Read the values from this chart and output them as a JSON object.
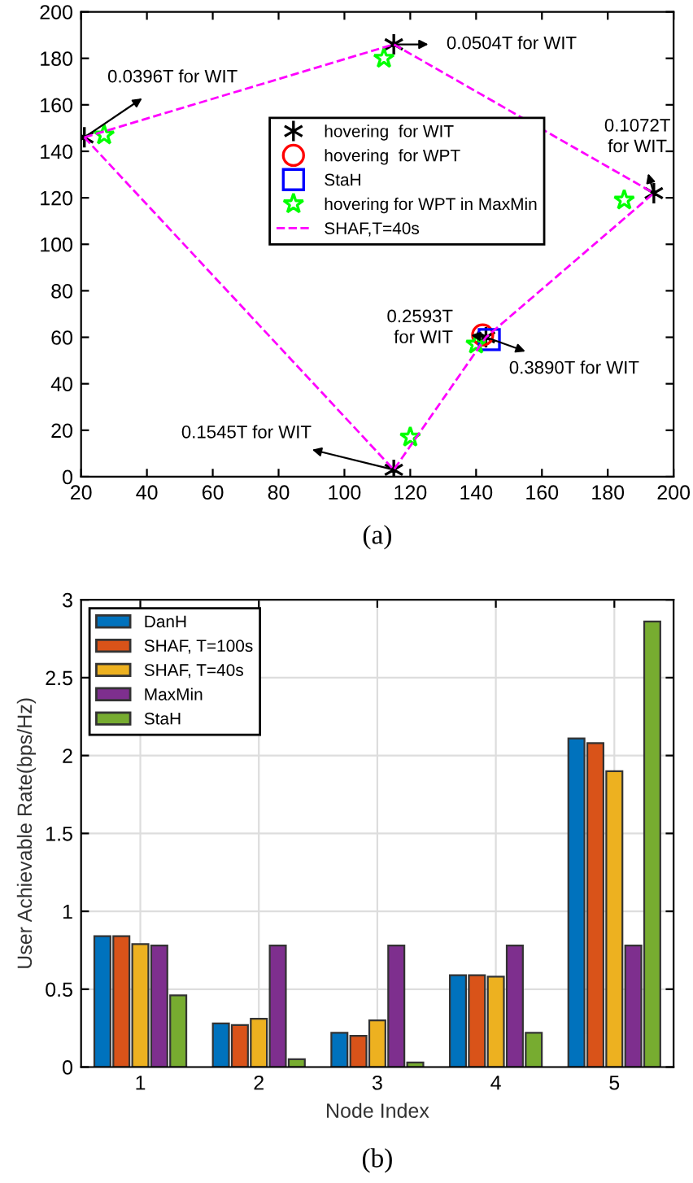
{
  "chart_data": [
    {
      "type": "scatter",
      "xlim": [
        20,
        200
      ],
      "ylim": [
        0,
        200
      ],
      "xticks": [
        20,
        40,
        60,
        80,
        100,
        120,
        140,
        160,
        180,
        200
      ],
      "yticks": [
        0,
        20,
        40,
        60,
        80,
        100,
        120,
        140,
        160,
        180,
        200
      ],
      "grid": false,
      "legend": "top",
      "series": [
        {
          "name": "hovering  for WIT",
          "color": "#000000",
          "marker": "cross",
          "x": [
            21,
            115,
            194,
            143,
            115
          ],
          "values": [
            146,
            186,
            122,
            60,
            3
          ]
        },
        {
          "name": "hovering  for WPT",
          "color": "#ff0000",
          "marker": "circle",
          "x": [
            142
          ],
          "values": [
            61
          ]
        },
        {
          "name": "StaH",
          "color": "#0000ff",
          "marker": "square",
          "x": [
            144
          ],
          "values": [
            59
          ]
        },
        {
          "name": "hovering for WPT in MaxMin",
          "color": "#00ff00",
          "marker": "star",
          "x": [
            27,
            112,
            185,
            140,
            120
          ],
          "values": [
            147,
            180,
            119,
            57,
            17
          ]
        },
        {
          "name": "SHAF,T=40s",
          "type": "line",
          "line_style": "dashed",
          "marker": "none",
          "color": "#ff00ff",
          "x": [
            21,
            115,
            194
          ],
          "values": [
            146,
            186,
            122
          ]
        },
        {
          "type": "line",
          "line_style": "dashed",
          "marker": "none",
          "color": "#ff00ff",
          "x": [
            21,
            115,
            143,
            194
          ],
          "values": [
            146,
            3,
            60,
            122
          ]
        }
      ],
      "annotations": [
        {
          "text": "0.0396T for WIT",
          "x": 21,
          "y": 146
        },
        {
          "text": "0.0504T for WIT",
          "x": 115,
          "y": 186
        },
        {
          "text": "0.1072T\nfor WIT",
          "x": 194,
          "y": 122
        },
        {
          "text": "0.2593T\nfor WIT",
          "x": 143,
          "y": 60
        },
        {
          "text": "0.3890T for WIT",
          "x": 143,
          "y": 60
        },
        {
          "text": "0.1545T for WIT",
          "x": 115,
          "y": 3
        },
        "(a)"
      ]
    },
    {
      "type": "bar",
      "categories": [
        "1",
        "2",
        "3",
        "4",
        "5"
      ],
      "xlabel": "Node Index",
      "ylabel": "User Achievable Rate(bps/Hz)",
      "ylim": [
        0,
        3
      ],
      "yticks": [
        0,
        0.5,
        1,
        1.5,
        2,
        2.5,
        3
      ],
      "grid": true,
      "legend": "top left",
      "series": [
        {
          "name": "DanH",
          "color": "#0072bd",
          "values": [
            0.84,
            0.28,
            0.22,
            0.59,
            2.11
          ]
        },
        {
          "name": "SHAF, T=100s",
          "color": "#d95319",
          "values": [
            0.84,
            0.27,
            0.2,
            0.59,
            2.08
          ]
        },
        {
          "name": "SHAF, T=40s",
          "color": "#edb120",
          "values": [
            0.79,
            0.31,
            0.3,
            0.58,
            1.9
          ]
        },
        {
          "name": "MaxMin",
          "color": "#7e2f8e",
          "values": [
            0.78,
            0.78,
            0.78,
            0.78,
            0.78
          ]
        },
        {
          "name": "StaH",
          "color": "#77ac30",
          "values": [
            0.46,
            0.05,
            0.03,
            0.22,
            2.86
          ]
        }
      ],
      "annotations": [
        "(b)"
      ]
    }
  ]
}
